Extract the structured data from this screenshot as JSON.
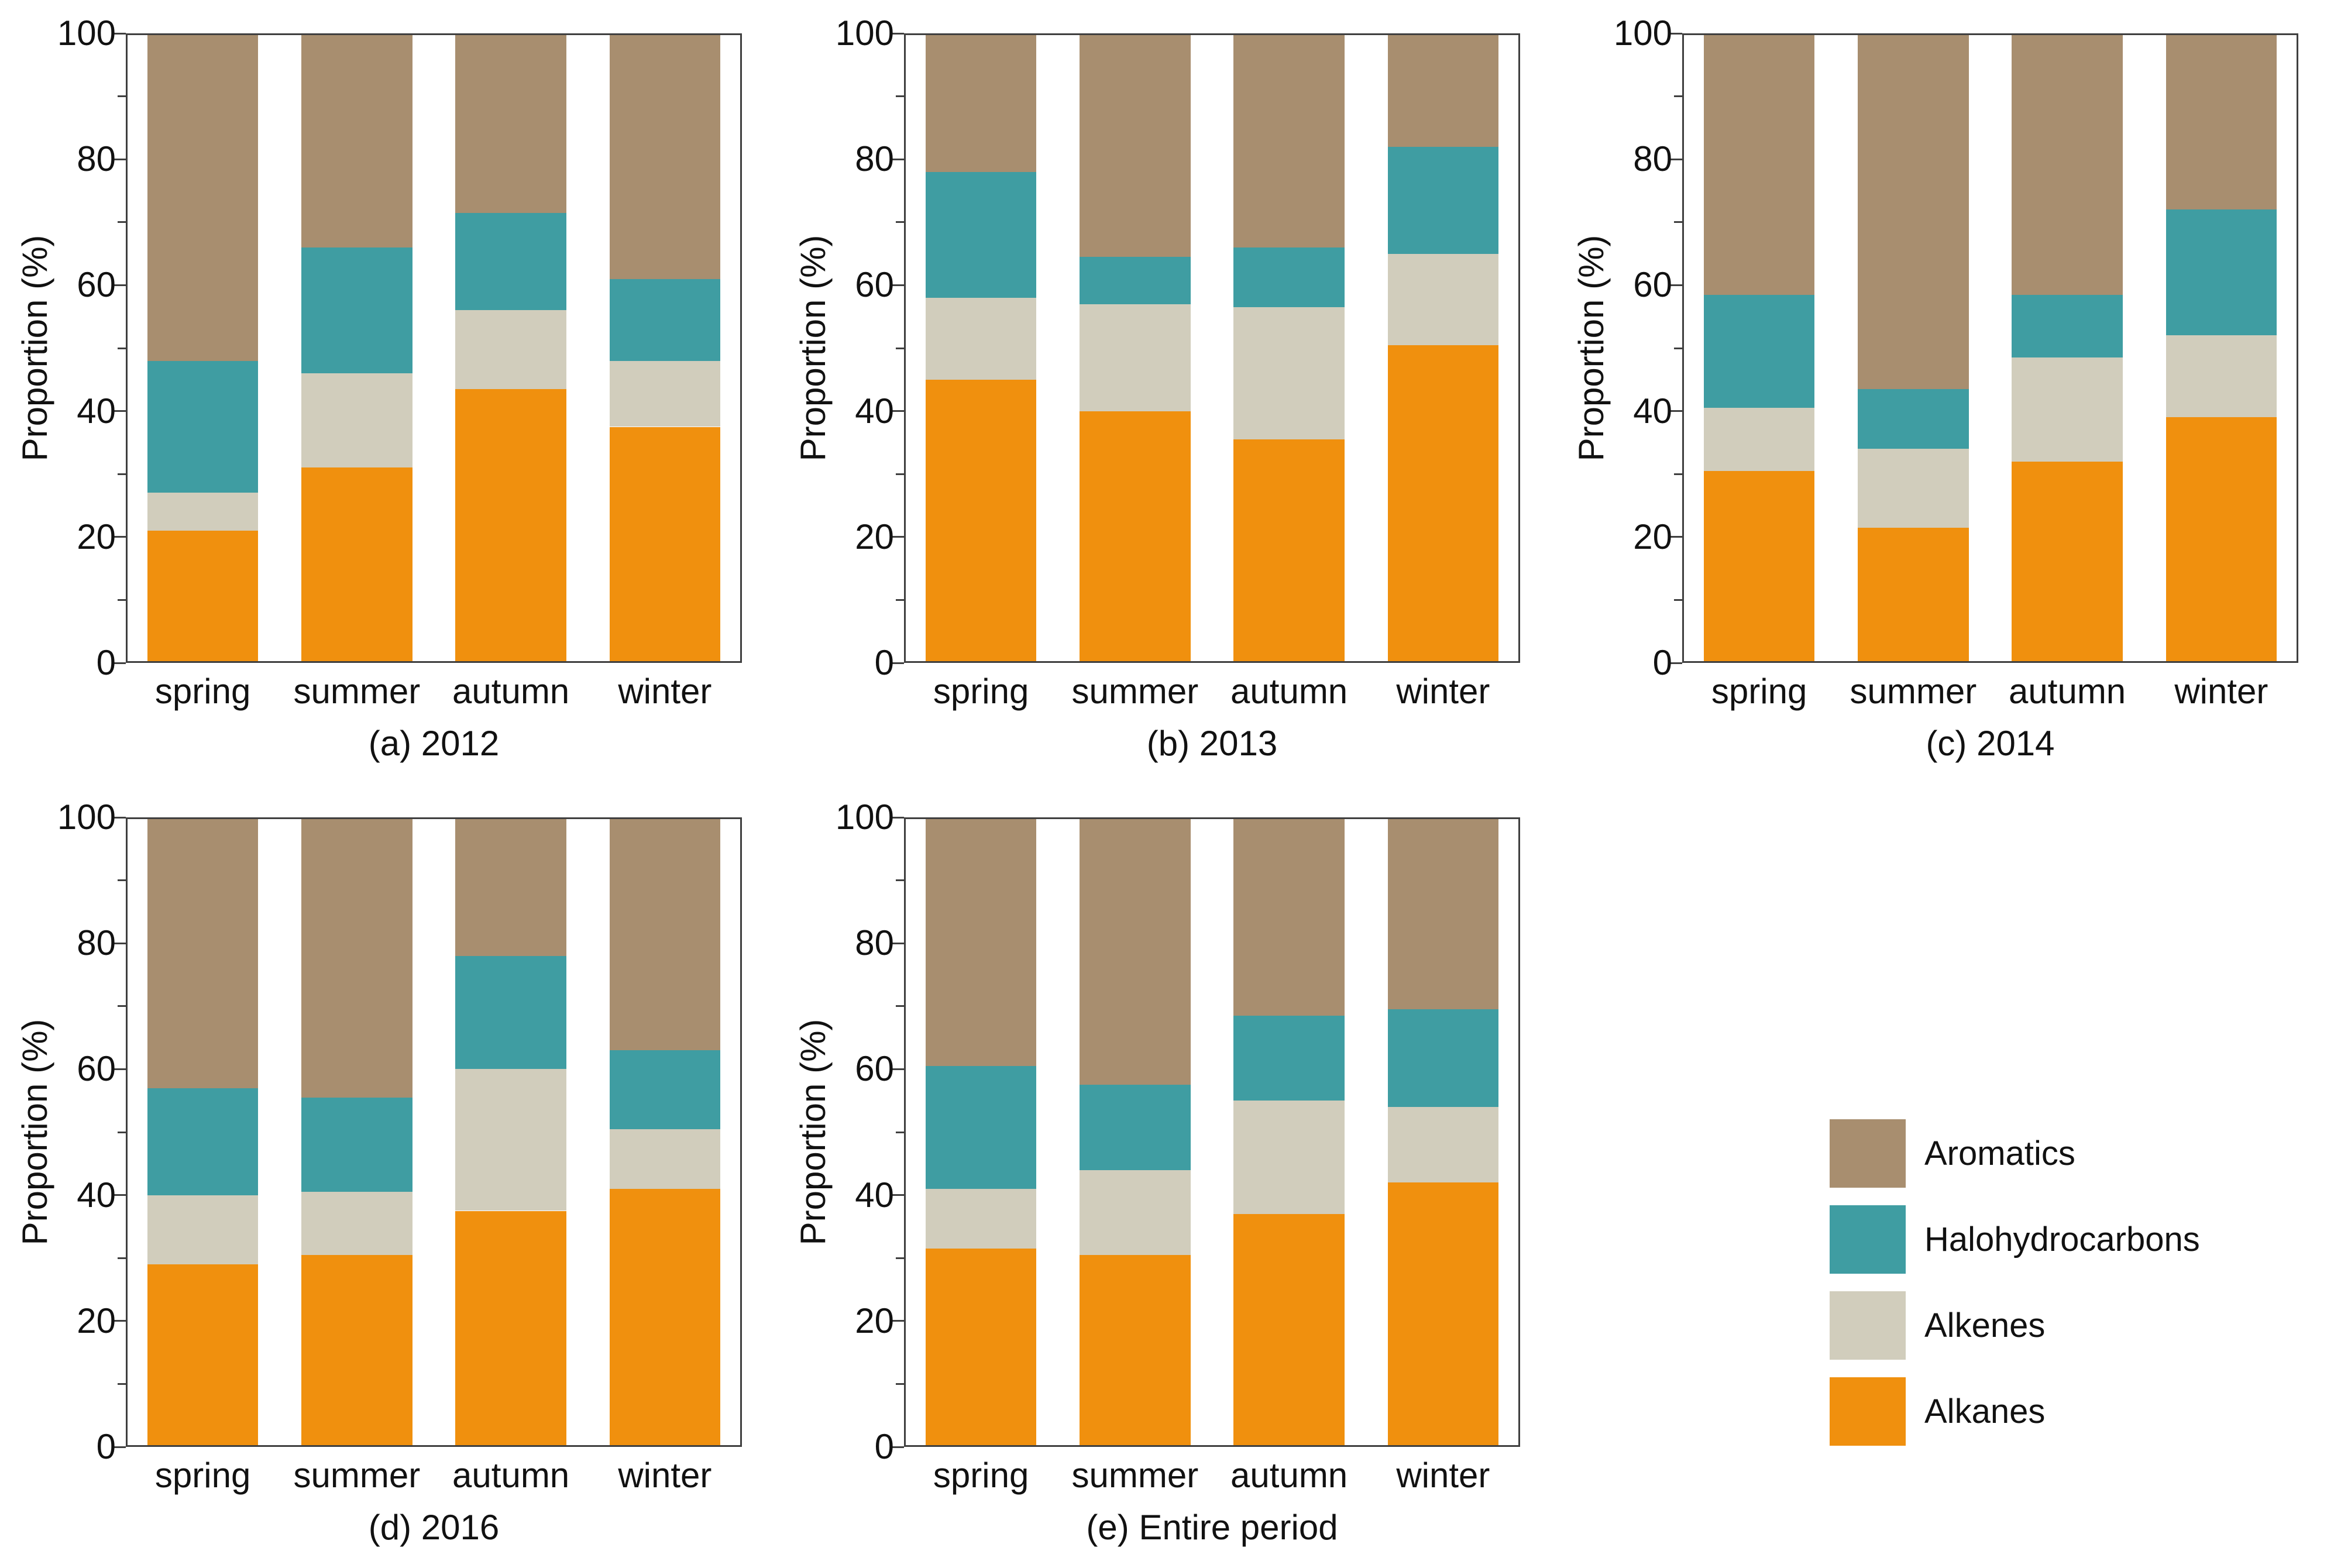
{
  "figure": {
    "y_axis_label": "Proportion (%)",
    "y_ticks": [
      "0",
      "20",
      "40",
      "60",
      "80",
      "100"
    ],
    "categories": [
      "spring",
      "summer",
      "autumn",
      "winter"
    ],
    "series_order": [
      "Alkanes",
      "Alkenes",
      "Halohydrocarbons",
      "Aromatics"
    ],
    "colors": {
      "Alkanes": "#F0900E",
      "Alkenes": "#D1CDBC",
      "Halohydrocarbons": "#3F9DA2",
      "Aromatics": "#A88E6F",
      "axis": "#3F3F3F"
    },
    "legend": {
      "entries": [
        {
          "label": "Aromatics",
          "color": "#A88E6F"
        },
        {
          "label": "Halohydrocarbons",
          "color": "#3F9DA2"
        },
        {
          "label": "Alkenes",
          "color": "#D1CDBC"
        },
        {
          "label": "Alkanes",
          "color": "#F0900E"
        }
      ]
    }
  },
  "chart_data": [
    {
      "type": "bar",
      "stacked": true,
      "title": "(a) 2012",
      "xlabel": "",
      "ylabel": "Proportion (%)",
      "ylim": [
        0,
        100
      ],
      "grid": false,
      "categories": [
        "spring",
        "summer",
        "autumn",
        "winter"
      ],
      "series": [
        {
          "name": "Alkanes",
          "values": [
            21,
            31,
            43.5,
            37.5
          ]
        },
        {
          "name": "Alkenes",
          "values": [
            6,
            15,
            12.5,
            10.5
          ]
        },
        {
          "name": "Halohydrocarbons",
          "values": [
            21,
            20,
            15.5,
            13
          ]
        },
        {
          "name": "Aromatics",
          "values": [
            52,
            34,
            28.5,
            39
          ]
        }
      ]
    },
    {
      "type": "bar",
      "stacked": true,
      "title": "(b) 2013",
      "xlabel": "",
      "ylabel": "Proportion (%)",
      "ylim": [
        0,
        100
      ],
      "grid": false,
      "categories": [
        "spring",
        "summer",
        "autumn",
        "winter"
      ],
      "series": [
        {
          "name": "Alkanes",
          "values": [
            45,
            40,
            35.5,
            50.5
          ]
        },
        {
          "name": "Alkenes",
          "values": [
            13,
            17,
            21,
            14.5
          ]
        },
        {
          "name": "Halohydrocarbons",
          "values": [
            20,
            7.5,
            9.5,
            17
          ]
        },
        {
          "name": "Aromatics",
          "values": [
            22,
            35.5,
            34,
            18
          ]
        }
      ]
    },
    {
      "type": "bar",
      "stacked": true,
      "title": "(c) 2014",
      "xlabel": "",
      "ylabel": "Proportion (%)",
      "ylim": [
        0,
        100
      ],
      "grid": false,
      "categories": [
        "spring",
        "summer",
        "autumn",
        "winter"
      ],
      "series": [
        {
          "name": "Alkanes",
          "values": [
            30.5,
            21.5,
            32,
            39
          ]
        },
        {
          "name": "Alkenes",
          "values": [
            10,
            12.5,
            16.5,
            13
          ]
        },
        {
          "name": "Halohydrocarbons",
          "values": [
            18,
            9.5,
            10,
            20
          ]
        },
        {
          "name": "Aromatics",
          "values": [
            41.5,
            56.5,
            41.5,
            28
          ]
        }
      ]
    },
    {
      "type": "bar",
      "stacked": true,
      "title": "(d) 2016",
      "xlabel": "",
      "ylabel": "Proportion (%)",
      "ylim": [
        0,
        100
      ],
      "grid": false,
      "categories": [
        "spring",
        "summer",
        "autumn",
        "winter"
      ],
      "series": [
        {
          "name": "Alkanes",
          "values": [
            29,
            30.5,
            37.5,
            41
          ]
        },
        {
          "name": "Alkenes",
          "values": [
            11,
            10,
            22.5,
            9.5
          ]
        },
        {
          "name": "Halohydrocarbons",
          "values": [
            17,
            15,
            18,
            12.5
          ]
        },
        {
          "name": "Aromatics",
          "values": [
            43,
            44.5,
            22,
            37
          ]
        }
      ]
    },
    {
      "type": "bar",
      "stacked": true,
      "title": "(e) Entire period",
      "xlabel": "",
      "ylabel": "Proportion (%)",
      "ylim": [
        0,
        100
      ],
      "grid": false,
      "categories": [
        "spring",
        "summer",
        "autumn",
        "winter"
      ],
      "series": [
        {
          "name": "Alkanes",
          "values": [
            31.5,
            30.5,
            37,
            42
          ]
        },
        {
          "name": "Alkenes",
          "values": [
            9.5,
            13.5,
            18,
            12
          ]
        },
        {
          "name": "Halohydrocarbons",
          "values": [
            19.5,
            13.5,
            13.5,
            15.5
          ]
        },
        {
          "name": "Aromatics",
          "values": [
            39.5,
            42.5,
            31.5,
            30.5
          ]
        }
      ]
    }
  ]
}
